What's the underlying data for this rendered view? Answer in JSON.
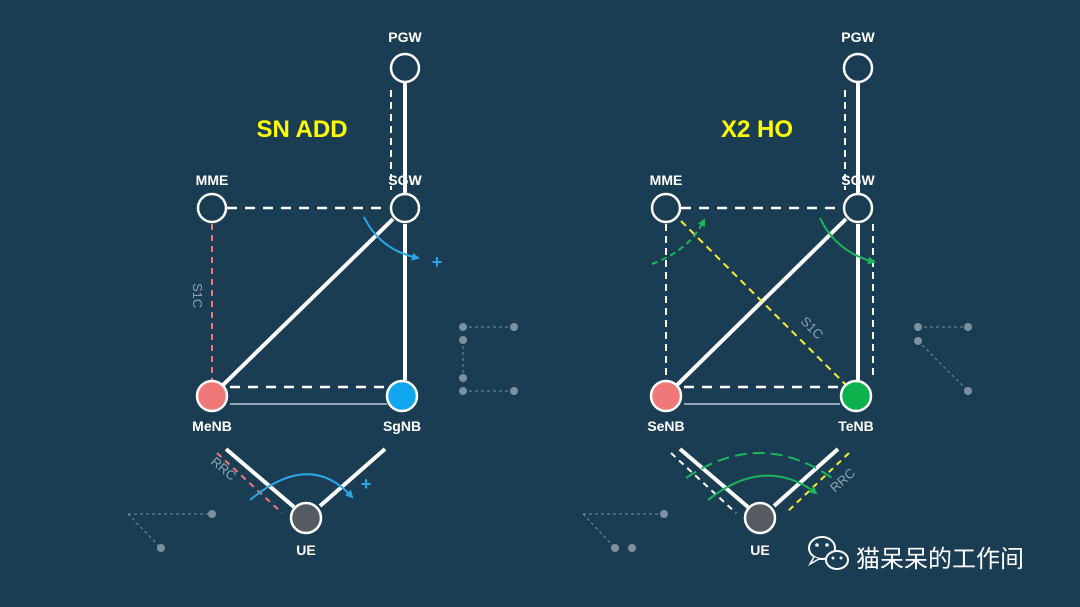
{
  "left": {
    "title": "SN ADD",
    "nodes": {
      "pgw": "PGW",
      "sgw": "SGW",
      "mme": "MME",
      "enb_a": "MeNB",
      "enb_b": "SgNB",
      "ue": "UE"
    },
    "s1c_label": "S1C",
    "rrc_label": "RRC",
    "plus_1": "+",
    "plus_2": "+",
    "colors": {
      "enb_a": "#f07878",
      "enb_b": "#11a7f0",
      "ue": "#555b60",
      "arrow": "#2aa7e6",
      "s1c": "#f07878"
    }
  },
  "right": {
    "title": "X2 HO",
    "nodes": {
      "pgw": "PGW",
      "sgw": "SGW",
      "mme": "MME",
      "enb_a": "SeNB",
      "enb_b": "TeNB",
      "ue": "UE"
    },
    "s1c_label": "S1C",
    "rrc_label": "RRC",
    "colors": {
      "enb_a": "#f07878",
      "enb_b": "#0db14b",
      "ue": "#555b60",
      "arrow": "#1bb55c",
      "s1c": "#f5ef2f"
    }
  },
  "watermark": {
    "text": "猫呆呆的工作间",
    "icon": "wechat-icon"
  }
}
